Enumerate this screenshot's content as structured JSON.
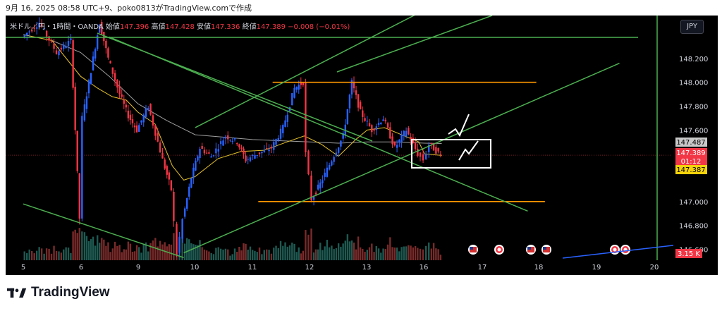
{
  "caption": "9月 16, 2025 08:58 UTC+9、poko0813がTradingView.comで作成",
  "legend": {
    "symbol": "米ドル／円・1時間・OANDA",
    "open_label": "始値",
    "open": "147.396",
    "high_label": "高値",
    "high": "147.428",
    "low_label": "安値",
    "low": "147.336",
    "close_label": "終値",
    "close": "147.389",
    "change": "−0.008 (−0.01%)"
  },
  "currency": "JPY",
  "brand": "TradingView",
  "colors": {
    "background": "#000000",
    "bull": "#2962ff",
    "bear": "#f23645",
    "trendline": "#4caf50",
    "level": "#ff9800",
    "sma_fast": "#e6c229",
    "sma_slow": "#9e9e9e",
    "current_vline": "#4caf50"
  },
  "chart_data": {
    "type": "candlestick",
    "symbol": "USDJPY",
    "timeframe": "1h",
    "x_tick_labels": [
      "5",
      "6",
      "9",
      "10",
      "11",
      "12",
      "13",
      "16",
      "17",
      "18",
      "19",
      "20"
    ],
    "y_tick_labels": [
      "148.200",
      "148.000",
      "147.800",
      "147.600",
      "147.000",
      "146.800",
      "146.600"
    ],
    "ylim": [
      146.52,
      148.56
    ],
    "price_tags": [
      {
        "text": "147.487",
        "kind": "reference",
        "value": 147.487
      },
      {
        "text": "147.389",
        "kind": "last",
        "value": 147.389
      },
      {
        "text": "01:12",
        "kind": "countdown"
      },
      {
        "text": "147.387",
        "kind": "sma",
        "value": 147.387
      }
    ],
    "volume_tag": "3.15 K",
    "horizontal_levels": [
      148.0,
      147.0
    ],
    "price_path": [
      [
        5.0,
        148.38
      ],
      [
        5.3,
        148.5
      ],
      [
        5.6,
        148.25
      ],
      [
        5.85,
        148.35
      ],
      [
        6.0,
        146.86
      ],
      [
        6.05,
        147.7
      ],
      [
        6.2,
        148.1
      ],
      [
        6.35,
        148.5
      ],
      [
        6.5,
        148.2
      ],
      [
        6.7,
        147.9
      ],
      [
        6.85,
        147.72
      ],
      [
        9.0,
        147.6
      ],
      [
        9.2,
        147.8
      ],
      [
        9.45,
        147.35
      ],
      [
        9.6,
        147.1
      ],
      [
        9.7,
        146.55
      ],
      [
        9.8,
        146.85
      ],
      [
        9.95,
        147.2
      ],
      [
        10.1,
        147.45
      ],
      [
        10.3,
        147.38
      ],
      [
        10.55,
        147.55
      ],
      [
        10.75,
        147.5
      ],
      [
        10.9,
        147.35
      ],
      [
        11.1,
        147.4
      ],
      [
        11.35,
        147.45
      ],
      [
        11.55,
        147.62
      ],
      [
        11.75,
        147.95
      ],
      [
        11.9,
        148.0
      ],
      [
        11.95,
        147.4
      ],
      [
        12.05,
        147.02
      ],
      [
        12.2,
        147.15
      ],
      [
        12.4,
        147.35
      ],
      [
        12.6,
        147.55
      ],
      [
        12.75,
        148.0
      ],
      [
        12.9,
        147.75
      ],
      [
        13.1,
        147.6
      ],
      [
        13.3,
        147.7
      ],
      [
        13.5,
        147.45
      ],
      [
        13.7,
        147.6
      ],
      [
        13.9,
        147.4
      ],
      [
        15.9,
        147.35
      ],
      [
        16.1,
        147.48
      ],
      [
        16.3,
        147.389
      ]
    ],
    "sma_fast": [
      [
        5.0,
        148.4
      ],
      [
        5.5,
        148.35
      ],
      [
        6.0,
        148.05
      ],
      [
        6.3,
        147.95
      ],
      [
        6.55,
        147.88
      ],
      [
        6.8,
        147.85
      ],
      [
        9.0,
        147.75
      ],
      [
        9.3,
        147.65
      ],
      [
        9.6,
        147.3
      ],
      [
        9.8,
        147.18
      ],
      [
        10.0,
        147.21
      ],
      [
        10.4,
        147.36
      ],
      [
        10.8,
        147.42
      ],
      [
        11.2,
        147.43
      ],
      [
        11.6,
        147.5
      ],
      [
        11.9,
        147.55
      ],
      [
        12.2,
        147.48
      ],
      [
        12.5,
        147.38
      ],
      [
        12.8,
        147.52
      ],
      [
        13.0,
        147.6
      ],
      [
        13.3,
        147.62
      ],
      [
        13.6,
        147.56
      ],
      [
        13.9,
        147.5
      ],
      [
        16.0,
        147.4
      ],
      [
        16.3,
        147.387
      ]
    ],
    "sma_slow": [
      [
        5.5,
        148.35
      ],
      [
        6.0,
        148.25
      ],
      [
        6.5,
        148.05
      ],
      [
        9.0,
        147.82
      ],
      [
        9.5,
        147.68
      ],
      [
        10.0,
        147.56
      ],
      [
        10.5,
        147.54
      ],
      [
        11.0,
        147.52
      ],
      [
        11.5,
        147.51
      ],
      [
        12.0,
        147.5
      ],
      [
        12.5,
        147.49
      ],
      [
        13.0,
        147.5
      ],
      [
        13.5,
        147.5
      ],
      [
        14.0,
        147.49
      ],
      [
        16.3,
        147.487
      ]
    ],
    "trend_lines": [
      [
        [
          6.5,
          148.38
        ],
        [
          17.8,
          146.92
        ]
      ],
      [
        [
          9.8,
          146.57
        ],
        [
          19.4,
          148.16
        ]
      ],
      [
        [
          10.0,
          147.62
        ],
        [
          16.95,
          148.84
        ]
      ],
      [
        [
          5.0,
          146.98
        ],
        [
          9.8,
          146.53
        ]
      ]
    ],
    "markers": [
      "us-flag",
      "target",
      "us-flag",
      "us-flag",
      "target",
      "target"
    ]
  }
}
